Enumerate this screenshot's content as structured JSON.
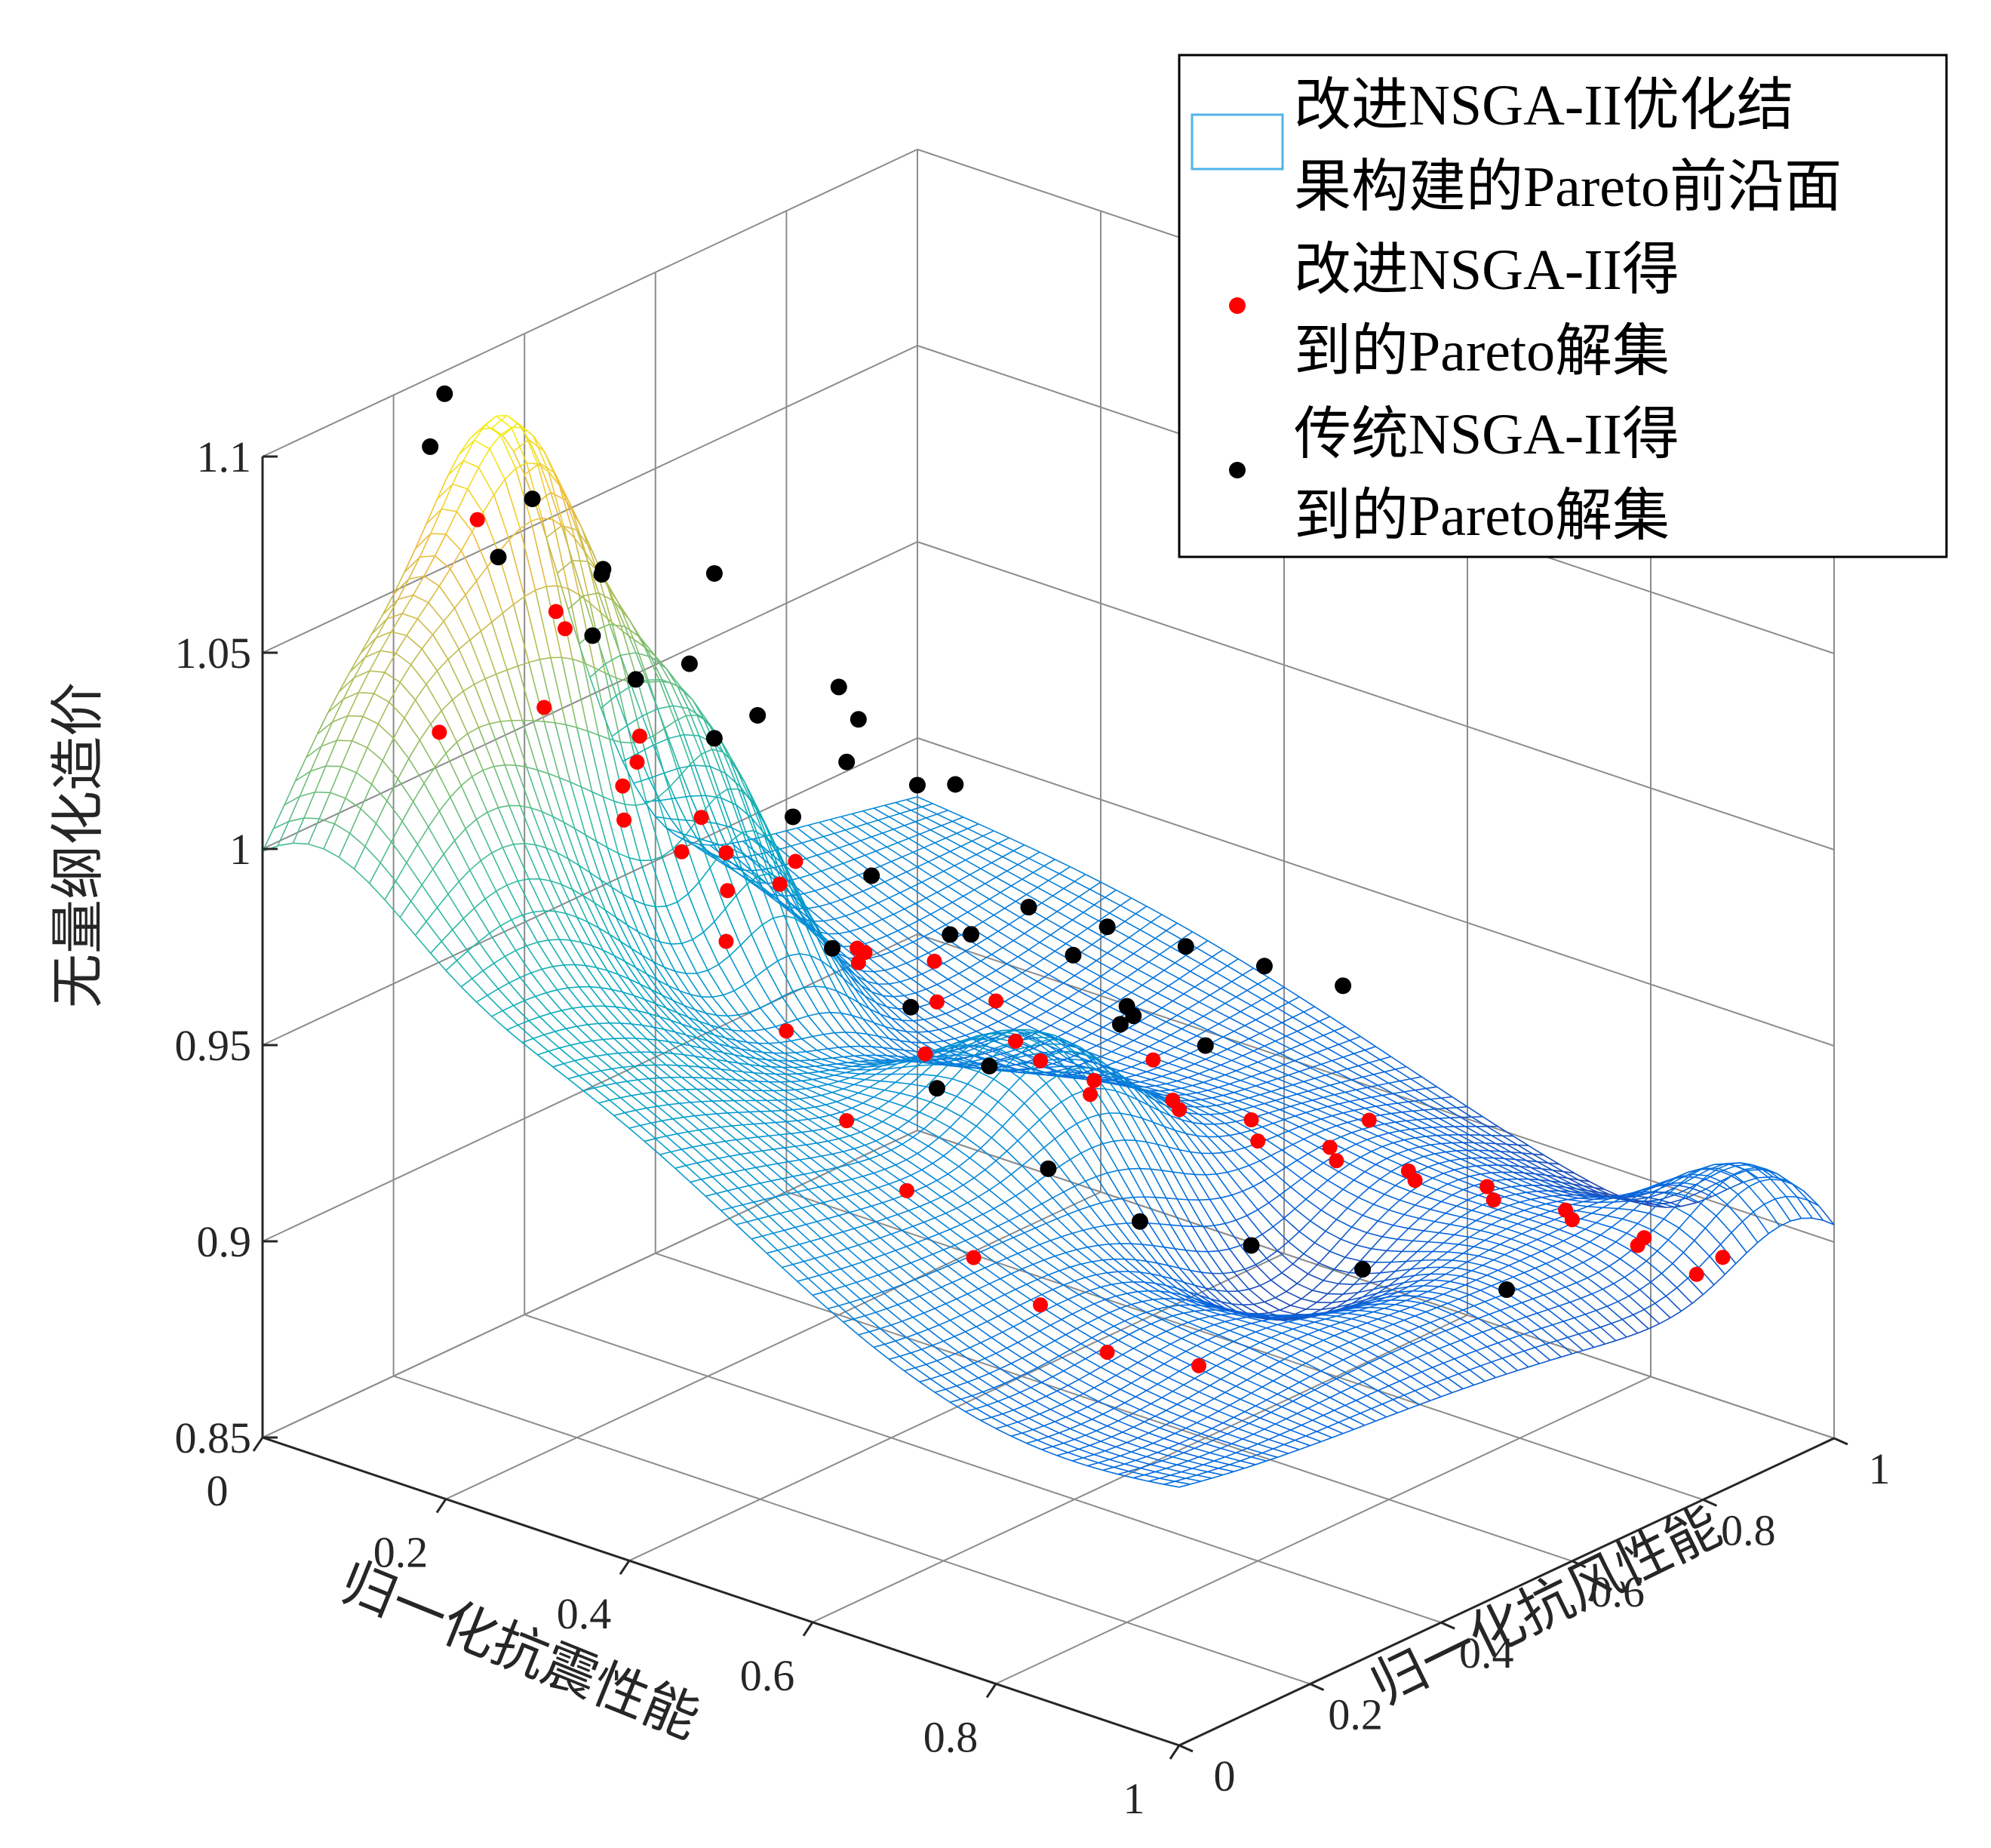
{
  "chart_data": {
    "type": "surface-scatter-3d",
    "xlabel": "归一化抗震性能",
    "ylabel": "归一化抗风性能",
    "zlabel": "无量纲化造价",
    "xlim": [
      0,
      1
    ],
    "ylim": [
      0,
      1
    ],
    "zlim": [
      0.85,
      1.1
    ],
    "x_ticks": [
      "0",
      "0.2",
      "0.4",
      "0.6",
      "0.8",
      "1"
    ],
    "y_ticks": [
      "0",
      "0.2",
      "0.4",
      "0.6",
      "0.8",
      "1"
    ],
    "z_ticks": [
      "0.85",
      "0.9",
      "0.95",
      "1",
      "1.05",
      "1.1"
    ],
    "grid": true,
    "colormap": "parula",
    "legend": {
      "placement": "top-right",
      "entries": [
        {
          "line1": "改进NSGA-II优化结",
          "line2": "果构建的Pareto前沿面",
          "marker": "surface",
          "color": "#4fb3e8"
        },
        {
          "line1": "改进NSGA-II得",
          "line2": "到的Pareto解集",
          "marker": "dot",
          "color": "#ff0000"
        },
        {
          "line1": "传统NSGA-II得",
          "line2": "到的Pareto解集",
          "marker": "dot",
          "color": "#000000"
        }
      ]
    },
    "series": [
      {
        "name": "改进NSGA-II得到的Pareto解集",
        "color": "#ff0000",
        "points": [
          [
            0.02,
            0.3,
            1.062
          ],
          [
            0.05,
            0.2,
            1.018
          ],
          [
            0.08,
            0.35,
            1.035
          ],
          [
            0.12,
            0.28,
            1.048
          ],
          [
            0.14,
            0.38,
            1.01
          ],
          [
            0.18,
            0.3,
            0.998
          ],
          [
            0.22,
            0.4,
            0.985
          ],
          [
            0.26,
            0.45,
            0.982
          ],
          [
            0.3,
            0.5,
            0.958
          ],
          [
            0.34,
            0.55,
            0.955
          ],
          [
            0.38,
            0.48,
            0.94
          ],
          [
            0.42,
            0.6,
            0.932
          ],
          [
            0.46,
            0.62,
            0.925
          ],
          [
            0.5,
            0.7,
            0.918
          ],
          [
            0.55,
            0.75,
            0.91
          ],
          [
            0.6,
            0.8,
            0.905
          ],
          [
            0.65,
            0.85,
            0.9
          ],
          [
            0.7,
            0.9,
            0.895
          ],
          [
            0.75,
            0.95,
            0.89
          ],
          [
            0.8,
            0.98,
            0.885
          ],
          [
            0.85,
            1.0,
            0.88
          ],
          [
            0.25,
            0.2,
            1.02
          ],
          [
            0.3,
            0.25,
            1.012
          ],
          [
            0.35,
            0.3,
            0.995
          ],
          [
            0.4,
            0.35,
            0.975
          ],
          [
            0.45,
            0.4,
            0.965
          ],
          [
            0.5,
            0.45,
            0.955
          ],
          [
            0.55,
            0.5,
            0.945
          ],
          [
            0.6,
            0.55,
            0.94
          ],
          [
            0.65,
            0.6,
            0.935
          ],
          [
            0.7,
            0.65,
            0.928
          ],
          [
            0.75,
            0.7,
            0.922
          ],
          [
            0.8,
            0.75,
            0.918
          ],
          [
            0.85,
            0.8,
            0.912
          ],
          [
            0.9,
            0.85,
            0.905
          ],
          [
            0.95,
            0.9,
            0.9
          ],
          [
            0.2,
            0.15,
            1.04
          ],
          [
            0.28,
            0.18,
            1.03
          ],
          [
            0.35,
            0.15,
            1.015
          ],
          [
            0.42,
            0.12,
            1.0
          ],
          [
            0.5,
            0.1,
            0.985
          ],
          [
            0.58,
            0.08,
            0.97
          ],
          [
            0.66,
            0.06,
            0.96
          ],
          [
            0.74,
            0.05,
            0.95
          ],
          [
            0.82,
            0.04,
            0.945
          ],
          [
            0.9,
            0.03,
            0.94
          ],
          [
            0.95,
            0.1,
            0.935
          ],
          [
            0.15,
            0.5,
            0.962
          ],
          [
            0.22,
            0.6,
            0.945
          ],
          [
            0.3,
            0.7,
            0.93
          ],
          [
            0.4,
            0.8,
            0.915
          ],
          [
            0.55,
            0.92,
            0.902
          ]
        ]
      },
      {
        "name": "传统NSGA-II得到的Pareto解集",
        "color": "#000000",
        "points": [
          [
            0.02,
            0.25,
            1.098
          ],
          [
            0.04,
            0.2,
            1.09
          ],
          [
            0.08,
            0.3,
            1.072
          ],
          [
            0.1,
            0.22,
            1.065
          ],
          [
            0.12,
            0.35,
            1.052
          ],
          [
            0.16,
            0.28,
            1.045
          ],
          [
            0.18,
            0.4,
            1.03
          ],
          [
            0.24,
            0.42,
            1.02
          ],
          [
            0.28,
            0.5,
            1.005
          ],
          [
            0.05,
            0.45,
            1.04
          ],
          [
            0.1,
            0.55,
            1.035
          ],
          [
            0.2,
            0.6,
            1.01
          ],
          [
            0.3,
            0.15,
            1.055
          ],
          [
            0.35,
            0.2,
            1.04
          ],
          [
            0.4,
            0.25,
            1.02
          ],
          [
            0.45,
            0.3,
            1.005
          ],
          [
            0.5,
            0.35,
            0.99
          ],
          [
            0.55,
            0.1,
            1.01
          ],
          [
            0.6,
            0.15,
            0.995
          ],
          [
            0.65,
            0.2,
            0.98
          ],
          [
            0.7,
            0.05,
            0.99
          ],
          [
            0.8,
            0.08,
            0.975
          ],
          [
            0.85,
            0.15,
            0.96
          ],
          [
            0.9,
            0.25,
            0.95
          ],
          [
            0.95,
            0.35,
            0.94
          ],
          [
            0.3,
            0.75,
            0.95
          ],
          [
            0.35,
            0.8,
            0.945
          ],
          [
            0.4,
            0.85,
            0.94
          ],
          [
            0.45,
            0.9,
            0.935
          ],
          [
            0.5,
            0.95,
            0.93
          ],
          [
            0.75,
            0.85,
            0.88
          ],
          [
            0.15,
            0.7,
            0.99
          ],
          [
            0.22,
            0.75,
            0.975
          ],
          [
            0.25,
            0.65,
            0.985
          ],
          [
            0.38,
            0.55,
            0.965
          ],
          [
            0.42,
            0.65,
            0.955
          ],
          [
            0.55,
            0.55,
            0.96
          ],
          [
            0.6,
            0.6,
            0.95
          ],
          [
            0.65,
            0.4,
            0.975
          ],
          [
            0.7,
            0.35,
            0.985
          ]
        ]
      }
    ]
  }
}
